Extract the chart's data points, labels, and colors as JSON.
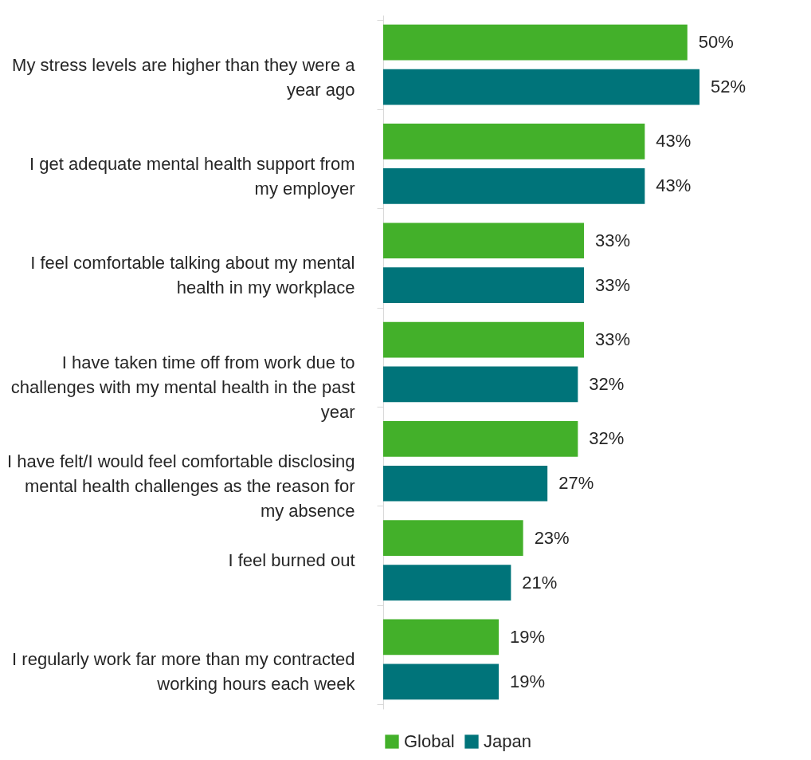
{
  "chart_data": {
    "type": "bar",
    "orientation": "horizontal",
    "categories": [
      "My stress levels are higher than they were a year ago",
      "I get adequate mental health support from my employer",
      "I feel comfortable talking about my mental health in my workplace",
      "I have taken time off from work due to challenges with my mental health in the past year",
      "I have felt/I would feel comfortable disclosing mental health challenges as the reason for my absence",
      "I feel burned out",
      "I regularly work far more than my contracted working hours each week"
    ],
    "series": [
      {
        "name": "Global",
        "color": "#43b02a",
        "values": [
          50,
          43,
          33,
          33,
          32,
          23,
          19
        ],
        "value_labels": [
          "50%",
          "43%",
          "33%",
          "33%",
          "32%",
          "23%",
          "19%"
        ]
      },
      {
        "name": "Japan",
        "color": "#00747a",
        "values": [
          52,
          43,
          33,
          32,
          27,
          21,
          19
        ],
        "value_labels": [
          "52%",
          "43%",
          "33%",
          "32%",
          "27%",
          "21%",
          "19%"
        ]
      }
    ],
    "legend": "bottom"
  }
}
